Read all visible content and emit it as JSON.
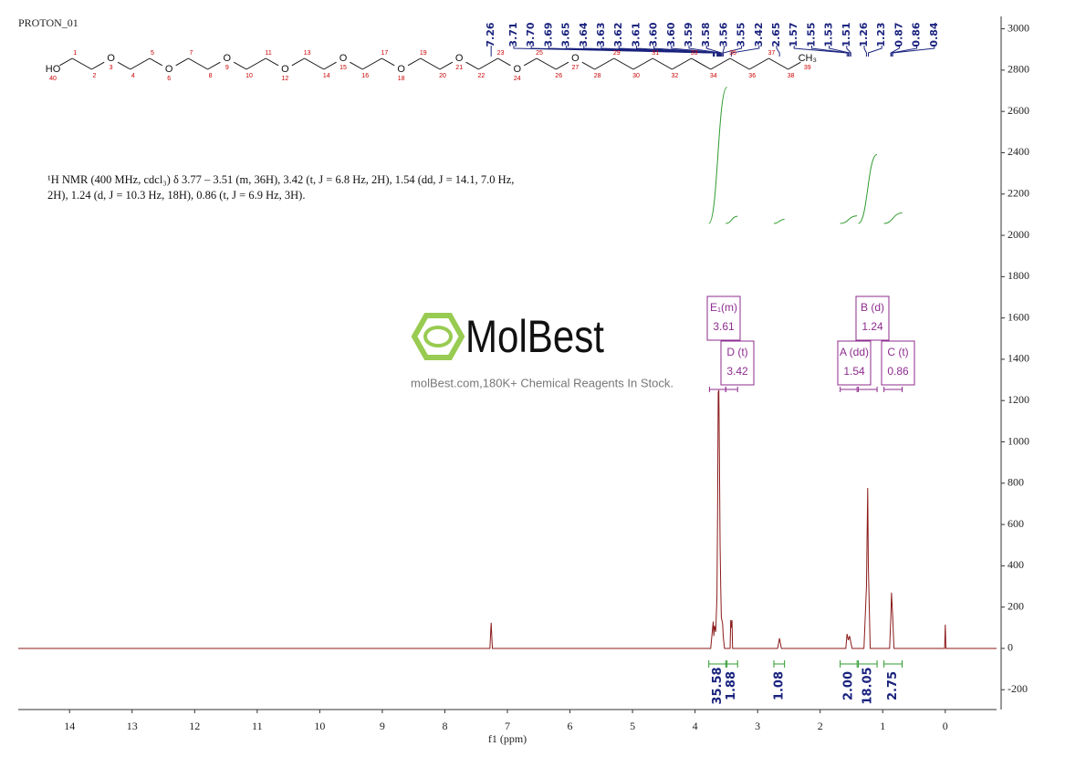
{
  "chart_data": {
    "type": "line",
    "title": "PROTON_01",
    "description": [
      "¹H NMR (400 MHz, cdcl₃) δ 3.77 – 3.51 (m, 36H), 3.42 (t, J = 6.8 Hz, 2H), 1.54 (dd, J = 14.1, 7.0 Hz,",
      "2H), 1.24 (d, J = 10.3 Hz, 18H), 0.86 (t, J = 6.9 Hz, 3H)."
    ],
    "x_label": "f1 (ppm)",
    "color": "#8b1a1a",
    "x": [
      14.82,
      7.28,
      7.26,
      7.24,
      3.75,
      3.71,
      3.7,
      3.69,
      3.67,
      3.65,
      3.64,
      3.63,
      3.62,
      3.61,
      3.6,
      3.59,
      3.58,
      3.56,
      3.55,
      3.53,
      3.44,
      3.43,
      3.42,
      3.41,
      3.4,
      2.68,
      2.65,
      2.62,
      1.59,
      1.57,
      1.55,
      1.53,
      1.51,
      1.49,
      1.3,
      1.26,
      1.24,
      1.23,
      1.2,
      0.89,
      0.87,
      0.86,
      0.84,
      0.82,
      0.01,
      0.0,
      -0.01,
      -0.82
    ],
    "values": [
      0,
      0,
      124,
      0,
      0,
      130,
      60,
      110,
      80,
      250,
      660,
      1240,
      1250,
      900,
      500,
      300,
      150,
      120,
      60,
      0,
      0,
      137,
      100,
      137,
      0,
      0,
      49,
      0,
      0,
      70,
      40,
      60,
      30,
      0,
      0,
      300,
      777,
      400,
      0,
      0,
      150,
      270,
      150,
      0,
      0,
      115,
      0,
      0
    ],
    "xlim": [
      14.82,
      -0.82
    ],
    "ylim": [
      -296,
      3060
    ],
    "xticks": [
      14,
      13,
      12,
      11,
      10,
      9,
      8,
      7,
      6,
      5,
      4,
      3,
      2,
      1,
      0
    ],
    "yticks": [
      -200,
      0,
      200,
      400,
      600,
      800,
      1000,
      1200,
      1400,
      1600,
      1800,
      2000,
      2200,
      2400,
      2600,
      2800,
      3000
    ],
    "peak_labels": {
      "color": "#1a237e",
      "values": [
        7.26,
        3.71,
        3.7,
        3.69,
        3.65,
        3.64,
        3.63,
        3.62,
        3.61,
        3.6,
        3.6,
        3.59,
        3.58,
        3.56,
        3.55,
        3.42,
        2.65,
        1.57,
        1.55,
        1.53,
        1.51,
        1.26,
        1.23,
        0.87,
        0.86,
        0.84
      ],
      "value_labels": [
        "7.26",
        "3.71",
        "3.70",
        "3.69",
        "3.65",
        "3.64",
        "3.63",
        "3.62",
        "3.61",
        "3.60",
        "3.60",
        "3.59",
        "3.58",
        "3.56",
        "3.55",
        "3.42",
        "2.65",
        "1.57",
        "1.55",
        "1.53",
        "1.51",
        "1.26",
        "1.23",
        "0.87",
        "0.86",
        "0.84"
      ]
    },
    "integrals": {
      "color": "#2e9b2e",
      "label_color": "#1a237e",
      "ranges": [
        [
          3.78,
          3.49
        ],
        [
          3.51,
          3.32
        ],
        [
          2.74,
          2.57
        ],
        [
          1.68,
          1.41
        ],
        [
          1.39,
          1.09
        ],
        [
          0.98,
          0.69
        ]
      ],
      "values": [
        35.58,
        1.88,
        1.08,
        2,
        18.05,
        2.75
      ],
      "value_labels": [
        "35.58",
        "1.88",
        "1.08",
        "2.00",
        "18.05",
        "2.75"
      ]
    },
    "multiplets": {
      "color": "#8e2c8e",
      "names": [
        "E₁(m)",
        "D (t)",
        "B (d)",
        "A (dd)",
        "C (t)"
      ],
      "shifts": [
        3.61,
        3.42,
        1.24,
        1.54,
        0.86
      ],
      "ranges": [
        [
          3.77,
          3.51
        ],
        [
          3.51,
          3.32
        ],
        [
          1.39,
          1.09
        ],
        [
          1.68,
          1.41
        ],
        [
          0.98,
          0.69
        ]
      ]
    },
    "structure": {
      "atoms": [
        {
          "label": "HO",
          "number": 40
        },
        {
          "number": 1
        },
        {
          "number": 2
        },
        {
          "label": "O",
          "number": 3
        },
        {
          "number": 4
        },
        {
          "number": 5
        },
        {
          "label": "O",
          "number": 6
        },
        {
          "number": 7
        },
        {
          "number": 8
        },
        {
          "label": "O",
          "number": 9
        },
        {
          "number": 10
        },
        {
          "number": 11
        },
        {
          "label": "O",
          "number": 12
        },
        {
          "number": 13
        },
        {
          "number": 14
        },
        {
          "label": "O",
          "number": 15
        },
        {
          "number": 16
        },
        {
          "number": 17
        },
        {
          "label": "O",
          "number": 18
        },
        {
          "number": 19
        },
        {
          "number": 20
        },
        {
          "label": "O",
          "number": 21
        },
        {
          "number": 22
        },
        {
          "number": 23
        },
        {
          "label": "O",
          "number": 24
        },
        {
          "number": 25
        },
        {
          "number": 26
        },
        {
          "label": "O",
          "number": 27
        },
        {
          "number": 28
        },
        {
          "number": 29
        },
        {
          "number": 30
        },
        {
          "number": 31
        },
        {
          "number": 32
        },
        {
          "number": 33
        },
        {
          "number": 34
        },
        {
          "number": 35
        },
        {
          "number": 36
        },
        {
          "number": 37
        },
        {
          "number": 38
        },
        {
          "label": "CH₃",
          "number": 39
        }
      ]
    },
    "watermark": {
      "brand": "MolBest",
      "tagline": "molBest.com,180K+ Chemical Reagents In Stock."
    }
  }
}
